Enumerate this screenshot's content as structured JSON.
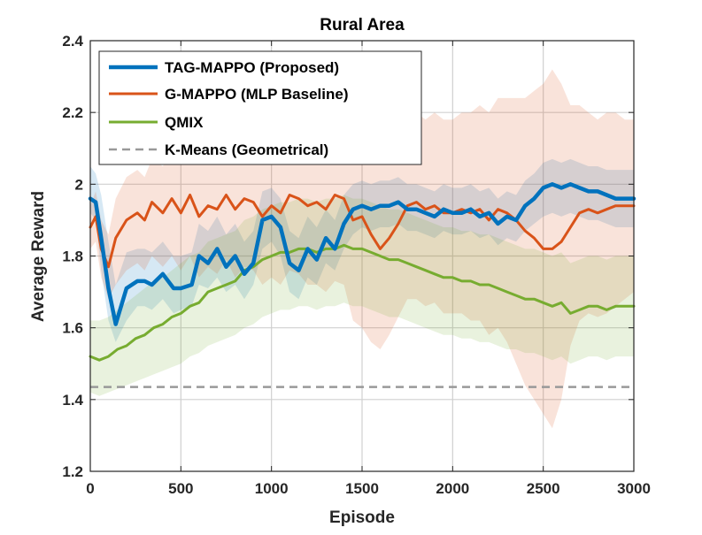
{
  "chart_data": {
    "type": "line",
    "title": "Rural Area",
    "xlabel": "Episode",
    "ylabel": "Average Reward",
    "xlim": [
      0,
      3000
    ],
    "ylim": [
      1.2,
      2.4
    ],
    "xticks": [
      0,
      500,
      1000,
      1500,
      2000,
      2500,
      3000
    ],
    "yticks": [
      1.2,
      1.4,
      1.6,
      1.8,
      2.0,
      2.2,
      2.4
    ],
    "xtick_labels": [
      "0",
      "500",
      "1000",
      "1500",
      "2000",
      "2500",
      "3000"
    ],
    "ytick_labels": [
      "1.2",
      "1.4",
      "1.6",
      "1.8",
      "2",
      "2.2",
      "2.4"
    ],
    "grid": true,
    "legend_position": "top-left",
    "series": [
      {
        "name": "TAG-MAPPO (Proposed)",
        "color": "#0072BD",
        "style": "solid",
        "x": [
          0,
          30,
          60,
          100,
          140,
          200,
          260,
          300,
          340,
          400,
          460,
          500,
          560,
          600,
          650,
          700,
          750,
          800,
          850,
          900,
          950,
          1000,
          1050,
          1100,
          1150,
          1200,
          1250,
          1300,
          1350,
          1400,
          1450,
          1500,
          1550,
          1600,
          1650,
          1700,
          1750,
          1800,
          1850,
          1900,
          1950,
          2000,
          2050,
          2100,
          2150,
          2200,
          2250,
          2300,
          2350,
          2400,
          2450,
          2500,
          2550,
          2600,
          2650,
          2700,
          2750,
          2800,
          2850,
          2900,
          2950,
          3000
        ],
        "values": [
          1.96,
          1.95,
          1.85,
          1.71,
          1.61,
          1.71,
          1.73,
          1.73,
          1.72,
          1.75,
          1.71,
          1.71,
          1.72,
          1.8,
          1.78,
          1.82,
          1.77,
          1.8,
          1.75,
          1.78,
          1.9,
          1.91,
          1.88,
          1.78,
          1.76,
          1.82,
          1.79,
          1.85,
          1.82,
          1.89,
          1.93,
          1.94,
          1.93,
          1.94,
          1.94,
          1.95,
          1.93,
          1.93,
          1.92,
          1.91,
          1.93,
          1.92,
          1.92,
          1.93,
          1.91,
          1.92,
          1.89,
          1.91,
          1.9,
          1.94,
          1.96,
          1.99,
          2.0,
          1.99,
          2.0,
          1.99,
          1.98,
          1.98,
          1.97,
          1.96,
          1.96,
          1.96
        ],
        "lower": [
          1.92,
          1.9,
          1.76,
          1.62,
          1.56,
          1.62,
          1.66,
          1.66,
          1.65,
          1.68,
          1.64,
          1.65,
          1.66,
          1.72,
          1.71,
          1.74,
          1.7,
          1.72,
          1.68,
          1.72,
          1.82,
          1.84,
          1.8,
          1.7,
          1.68,
          1.74,
          1.72,
          1.78,
          1.76,
          1.82,
          1.86,
          1.88,
          1.87,
          1.88,
          1.88,
          1.89,
          1.87,
          1.87,
          1.86,
          1.85,
          1.87,
          1.86,
          1.86,
          1.87,
          1.85,
          1.86,
          1.83,
          1.85,
          1.84,
          1.87,
          1.89,
          1.91,
          1.92,
          1.91,
          1.92,
          1.91,
          1.9,
          1.9,
          1.89,
          1.88,
          1.88,
          1.88
        ],
        "upper": [
          2.05,
          2.03,
          1.97,
          1.84,
          1.72,
          1.81,
          1.82,
          1.82,
          1.81,
          1.84,
          1.8,
          1.8,
          1.81,
          1.89,
          1.87,
          1.91,
          1.86,
          1.89,
          1.84,
          1.87,
          1.98,
          1.99,
          1.96,
          1.87,
          1.85,
          1.91,
          1.88,
          1.93,
          1.9,
          1.97,
          2.0,
          2.01,
          2.0,
          2.01,
          2.01,
          2.02,
          2.0,
          2.0,
          1.99,
          1.98,
          2.0,
          1.99,
          1.99,
          2.0,
          1.98,
          1.99,
          1.96,
          1.98,
          1.97,
          2.01,
          2.03,
          2.06,
          2.07,
          2.06,
          2.07,
          2.06,
          2.05,
          2.05,
          2.04,
          2.04,
          2.04,
          2.04
        ]
      },
      {
        "name": "G-MAPPO (MLP Baseline)",
        "color": "#D95319",
        "style": "solid",
        "x": [
          0,
          30,
          60,
          100,
          140,
          200,
          260,
          300,
          340,
          400,
          450,
          500,
          550,
          600,
          650,
          700,
          750,
          800,
          850,
          900,
          950,
          1000,
          1050,
          1100,
          1150,
          1200,
          1250,
          1300,
          1350,
          1400,
          1450,
          1500,
          1550,
          1600,
          1650,
          1700,
          1750,
          1800,
          1850,
          1900,
          1950,
          2000,
          2050,
          2100,
          2150,
          2200,
          2250,
          2300,
          2350,
          2400,
          2450,
          2500,
          2550,
          2600,
          2650,
          2700,
          2750,
          2800,
          2850,
          2900,
          2950,
          3000
        ],
        "values": [
          1.88,
          1.91,
          1.82,
          1.77,
          1.85,
          1.9,
          1.92,
          1.9,
          1.95,
          1.92,
          1.96,
          1.92,
          1.97,
          1.91,
          1.94,
          1.93,
          1.97,
          1.93,
          1.96,
          1.95,
          1.91,
          1.94,
          1.92,
          1.97,
          1.96,
          1.94,
          1.95,
          1.93,
          1.97,
          1.96,
          1.9,
          1.91,
          1.86,
          1.82,
          1.85,
          1.89,
          1.94,
          1.95,
          1.93,
          1.94,
          1.92,
          1.92,
          1.93,
          1.92,
          1.93,
          1.9,
          1.93,
          1.92,
          1.9,
          1.87,
          1.85,
          1.82,
          1.82,
          1.84,
          1.88,
          1.92,
          1.93,
          1.92,
          1.93,
          1.94,
          1.94,
          1.94
        ],
        "lower": [
          1.82,
          1.84,
          1.74,
          1.68,
          1.72,
          1.76,
          1.78,
          1.76,
          1.8,
          1.77,
          1.8,
          1.76,
          1.8,
          1.74,
          1.77,
          1.75,
          1.79,
          1.74,
          1.77,
          1.76,
          1.72,
          1.74,
          1.72,
          1.76,
          1.75,
          1.72,
          1.72,
          1.7,
          1.73,
          1.72,
          1.62,
          1.6,
          1.56,
          1.54,
          1.58,
          1.63,
          1.68,
          1.68,
          1.66,
          1.67,
          1.64,
          1.64,
          1.64,
          1.62,
          1.62,
          1.58,
          1.6,
          1.56,
          1.5,
          1.44,
          1.4,
          1.36,
          1.32,
          1.4,
          1.55,
          1.62,
          1.64,
          1.63,
          1.64,
          1.66,
          1.68,
          1.7
        ],
        "upper": [
          1.94,
          1.98,
          1.9,
          1.86,
          1.96,
          2.02,
          2.04,
          2.02,
          2.07,
          2.05,
          2.09,
          2.06,
          2.11,
          2.06,
          2.09,
          2.08,
          2.12,
          2.1,
          2.13,
          2.12,
          2.09,
          2.12,
          2.1,
          2.16,
          2.15,
          2.14,
          2.16,
          2.14,
          2.18,
          2.17,
          2.14,
          2.16,
          2.13,
          2.1,
          2.12,
          2.15,
          2.19,
          2.2,
          2.18,
          2.2,
          2.18,
          2.18,
          2.2,
          2.2,
          2.22,
          2.2,
          2.24,
          2.24,
          2.24,
          2.24,
          2.26,
          2.28,
          2.32,
          2.28,
          2.22,
          2.22,
          2.2,
          2.18,
          2.2,
          2.2,
          2.18,
          2.18
        ]
      },
      {
        "name": "QMIX",
        "color": "#77AC30",
        "style": "solid",
        "x": [
          0,
          50,
          100,
          150,
          200,
          250,
          300,
          350,
          400,
          450,
          500,
          550,
          600,
          650,
          700,
          750,
          800,
          850,
          900,
          950,
          1000,
          1050,
          1100,
          1150,
          1200,
          1250,
          1300,
          1350,
          1400,
          1450,
          1500,
          1550,
          1600,
          1650,
          1700,
          1750,
          1800,
          1850,
          1900,
          1950,
          2000,
          2050,
          2100,
          2150,
          2200,
          2250,
          2300,
          2350,
          2400,
          2450,
          2500,
          2550,
          2600,
          2650,
          2700,
          2750,
          2800,
          2850,
          2900,
          2950,
          3000
        ],
        "values": [
          1.52,
          1.51,
          1.52,
          1.54,
          1.55,
          1.57,
          1.58,
          1.6,
          1.61,
          1.63,
          1.64,
          1.66,
          1.67,
          1.7,
          1.71,
          1.72,
          1.73,
          1.76,
          1.77,
          1.79,
          1.8,
          1.81,
          1.81,
          1.82,
          1.82,
          1.81,
          1.82,
          1.82,
          1.83,
          1.82,
          1.82,
          1.81,
          1.8,
          1.79,
          1.79,
          1.78,
          1.77,
          1.76,
          1.75,
          1.74,
          1.74,
          1.73,
          1.73,
          1.72,
          1.72,
          1.71,
          1.7,
          1.69,
          1.68,
          1.68,
          1.67,
          1.66,
          1.67,
          1.64,
          1.65,
          1.66,
          1.66,
          1.65,
          1.66,
          1.66,
          1.66
        ],
        "lower": [
          1.42,
          1.41,
          1.42,
          1.43,
          1.44,
          1.45,
          1.46,
          1.47,
          1.48,
          1.49,
          1.5,
          1.52,
          1.53,
          1.55,
          1.56,
          1.57,
          1.58,
          1.6,
          1.61,
          1.63,
          1.64,
          1.65,
          1.65,
          1.66,
          1.66,
          1.65,
          1.66,
          1.66,
          1.67,
          1.66,
          1.66,
          1.65,
          1.64,
          1.63,
          1.63,
          1.62,
          1.61,
          1.6,
          1.59,
          1.58,
          1.58,
          1.57,
          1.57,
          1.56,
          1.56,
          1.55,
          1.54,
          1.54,
          1.53,
          1.53,
          1.52,
          1.51,
          1.52,
          1.5,
          1.51,
          1.52,
          1.52,
          1.51,
          1.52,
          1.52,
          1.52
        ],
        "upper": [
          1.62,
          1.62,
          1.63,
          1.65,
          1.67,
          1.69,
          1.71,
          1.73,
          1.74,
          1.76,
          1.78,
          1.8,
          1.81,
          1.84,
          1.85,
          1.86,
          1.87,
          1.9,
          1.91,
          1.93,
          1.94,
          1.95,
          1.95,
          1.96,
          1.96,
          1.95,
          1.96,
          1.96,
          1.97,
          1.96,
          1.96,
          1.95,
          1.94,
          1.93,
          1.93,
          1.92,
          1.91,
          1.9,
          1.89,
          1.88,
          1.88,
          1.87,
          1.87,
          1.86,
          1.86,
          1.85,
          1.84,
          1.83,
          1.82,
          1.82,
          1.81,
          1.8,
          1.81,
          1.78,
          1.79,
          1.8,
          1.8,
          1.79,
          1.8,
          1.8,
          1.8
        ]
      },
      {
        "name": "K-Means (Geometrical)",
        "color": "#999999",
        "style": "dashed",
        "x": [
          0,
          3000
        ],
        "values": [
          1.435,
          1.435
        ]
      }
    ]
  }
}
